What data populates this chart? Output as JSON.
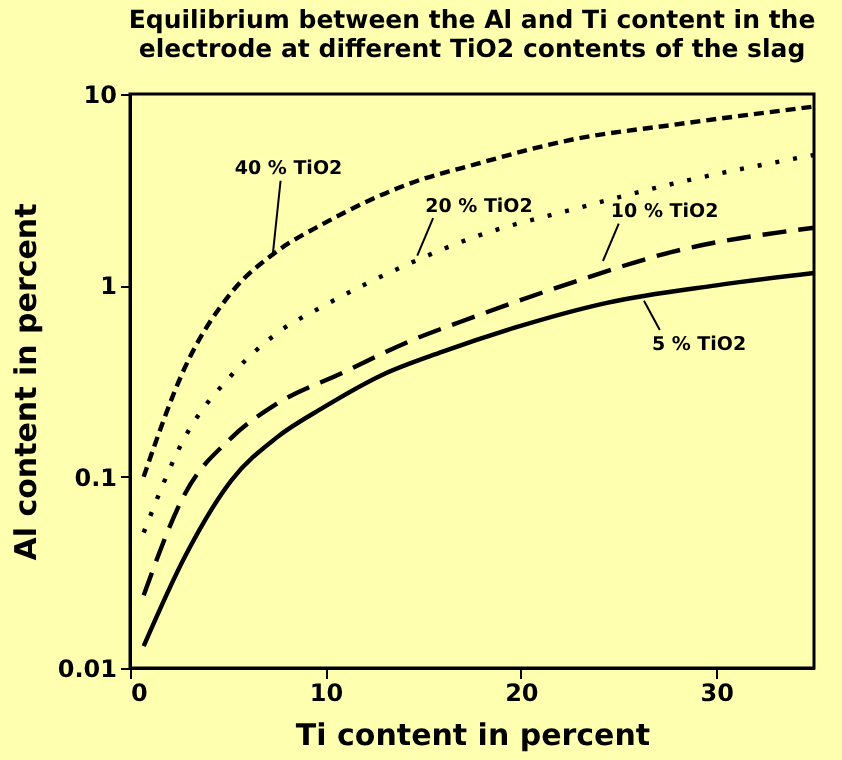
{
  "chart_data": {
    "type": "line",
    "title": "Equilibrium between the Al and Ti content in the\nelectrode at different TiO2 contents of the slag",
    "xlabel": "Ti content in percent",
    "ylabel": "Al content in percent",
    "x": [
      0.7,
      2.8,
      5.2,
      7.5,
      9.9,
      12.9,
      16.0,
      19.9,
      24.4,
      30.0,
      35.0
    ],
    "series": [
      {
        "color": "#000000",
        "line_style": "dashed",
        "x": [
          0.7,
          2.8,
          5.2,
          7.5,
          9.9,
          14.3,
          17.7,
          22.7,
          27.8,
          35.0
        ],
        "values": [
          0.1,
          0.37,
          0.92,
          1.5,
          2.1,
          3.4,
          4.3,
          5.8,
          6.9,
          8.6
        ]
      },
      {
        "color": "#000000",
        "line_style": "dotted",
        "x": [
          0.7,
          2.8,
          5.2,
          7.5,
          9.9,
          14.3,
          17.7,
          22.7,
          27.8,
          35.0
        ],
        "values": [
          0.051,
          0.16,
          0.34,
          0.56,
          0.78,
          1.3,
          1.8,
          2.5,
          3.4,
          4.8
        ]
      },
      {
        "color": "#000000",
        "line_style": "dashed",
        "x": [
          0.7,
          2.8,
          5.2,
          7.5,
          10.9,
          14.3,
          17.7,
          22.7,
          27.8,
          35.0
        ],
        "values": [
          0.024,
          0.081,
          0.16,
          0.24,
          0.35,
          0.51,
          0.69,
          1.04,
          1.5,
          2.0
        ]
      },
      {
        "color": "#000000",
        "line_style": "solid",
        "values": [
          0.013,
          0.038,
          0.096,
          0.16,
          0.23,
          0.34,
          0.45,
          0.61,
          0.81,
          1.0,
          1.16
        ]
      }
    ],
    "annotations": [
      {
        "text": "40 % TiO2",
        "x": 7.3,
        "y": 1.43
      },
      {
        "text": "20 % TiO2",
        "x": 14.7,
        "y": 1.43
      },
      {
        "text": "10 % TiO2",
        "x": 24.2,
        "y": 1.34
      },
      {
        "text": "5 % TiO2",
        "x": 26.3,
        "y": 0.83
      }
    ],
    "xlim": [
      0,
      35
    ],
    "xticks": [
      0,
      10,
      20,
      30
    ],
    "ylim": [
      0.01,
      10
    ],
    "yticks": [
      0.01,
      0.1,
      1,
      10
    ],
    "log": true,
    "grid": false
  }
}
